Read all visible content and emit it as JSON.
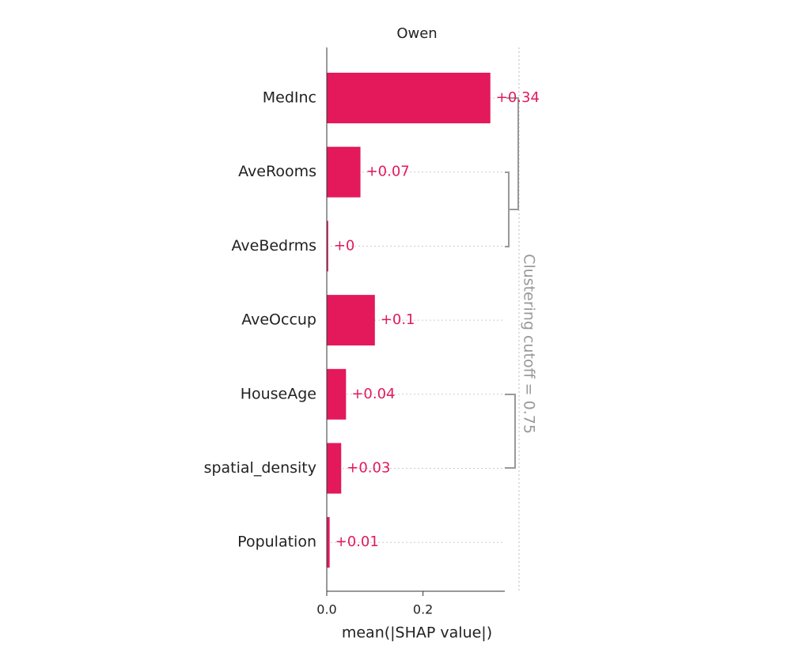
{
  "chart_data": {
    "type": "bar",
    "orientation": "horizontal",
    "title": "Owen",
    "xlabel": "mean(|SHAP value|)",
    "categories": [
      "MedInc",
      "AveRooms",
      "AveBedrms",
      "AveOccup",
      "HouseAge",
      "spatial_density",
      "Population"
    ],
    "values": [
      0.34,
      0.07,
      0.003,
      0.1,
      0.04,
      0.03,
      0.006
    ],
    "value_labels": [
      "+0.34",
      "+0.07",
      "+0",
      "+0.1",
      "+0.04",
      "+0.03",
      "+0.01"
    ],
    "color": "#e3195b",
    "xlim": [
      0,
      0.37
    ],
    "xticks": [
      {
        "value": 0,
        "label": "0.0"
      },
      0.2
    ],
    "annotation": "Clustering cutoff = 0.75"
  }
}
